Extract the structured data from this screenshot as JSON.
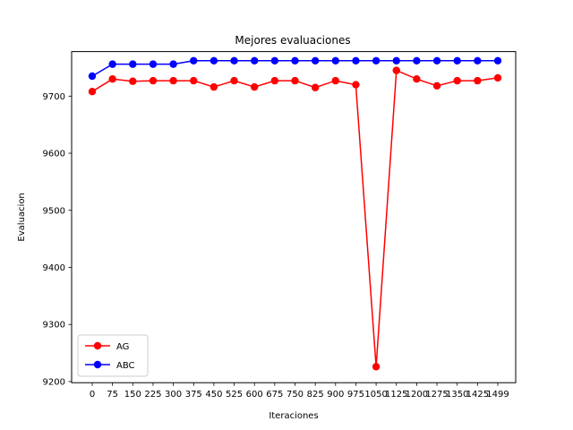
{
  "chart_data": {
    "type": "line",
    "title": "Mejores evaluaciones",
    "xlabel": "Iteraciones",
    "ylabel": "Evaluacion",
    "x": [
      0,
      75,
      150,
      225,
      300,
      375,
      450,
      525,
      600,
      675,
      750,
      825,
      900,
      975,
      1050,
      1125,
      1200,
      1275,
      1350,
      1425,
      1499
    ],
    "x_tick_labels": [
      "0",
      "75",
      "150",
      "225",
      "300",
      "375",
      "450",
      "525",
      "600",
      "675",
      "750",
      "825",
      "900",
      "975",
      "1050",
      "1125",
      "1200",
      "1275",
      "1350",
      "1425",
      "1499"
    ],
    "y_ticks": [
      9200,
      9300,
      9400,
      9500,
      9600,
      9700
    ],
    "y_tick_labels": [
      "9200",
      "9300",
      "9400",
      "9500",
      "9600",
      "9700"
    ],
    "ylim": [
      9198,
      9778
    ],
    "series": [
      {
        "name": "AG",
        "color": "#ff0000",
        "values": [
          9708,
          9730,
          9726,
          9727,
          9727,
          9727,
          9716,
          9727,
          9716,
          9727,
          9727,
          9715,
          9727,
          9720,
          9226,
          9745,
          9730,
          9718,
          9727,
          9727,
          9732
        ]
      },
      {
        "name": "ABC",
        "color": "#0000ff",
        "values": [
          9735,
          9756,
          9756,
          9756,
          9756,
          9762,
          9762,
          9762,
          9762,
          9762,
          9762,
          9762,
          9762,
          9762,
          9762,
          9762,
          9762,
          9762,
          9762,
          9762,
          9762
        ]
      }
    ],
    "legend": {
      "placement": "lower-left",
      "entries": [
        "AG",
        "ABC"
      ]
    },
    "grid": false
  }
}
